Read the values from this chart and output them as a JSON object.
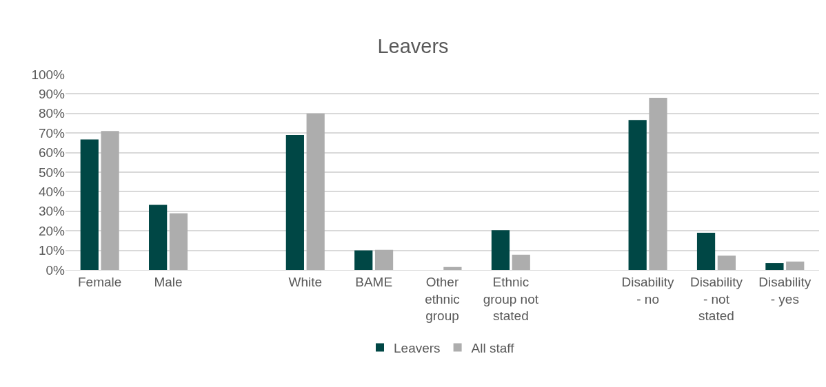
{
  "chart_data": {
    "type": "bar",
    "title": "Leavers",
    "categories": [
      "Female",
      "Male",
      null,
      "White",
      "BAME",
      "Other ethnic group",
      "Ethnic group not stated",
      null,
      "Disability - no",
      "Disability - not stated",
      "Disability - yes"
    ],
    "series": [
      {
        "name": "Leavers",
        "color": "#004745",
        "values": [
          66.7,
          33.3,
          null,
          69,
          10,
          0,
          20.3,
          null,
          76.7,
          19,
          3.5
        ]
      },
      {
        "name": "All staff",
        "color": "#adadad",
        "values": [
          71,
          29,
          null,
          80,
          10.3,
          1.5,
          7.8,
          null,
          88,
          7.3,
          4.3
        ]
      }
    ],
    "ylim": [
      0,
      100
    ],
    "yticks": [
      {
        "value": 0,
        "label": "0%"
      },
      {
        "value": 10,
        "label": "10%"
      },
      {
        "value": 20,
        "label": "20%"
      },
      {
        "value": 30,
        "label": "30%"
      },
      {
        "value": 40,
        "label": "40%"
      },
      {
        "value": 50,
        "label": "50%"
      },
      {
        "value": 60,
        "label": "60%"
      },
      {
        "value": 70,
        "label": "70%"
      },
      {
        "value": 80,
        "label": "80%"
      },
      {
        "value": 90,
        "label": "90%"
      },
      {
        "value": 100,
        "label": "100%"
      }
    ],
    "grid": "y",
    "legend": "bottom"
  }
}
